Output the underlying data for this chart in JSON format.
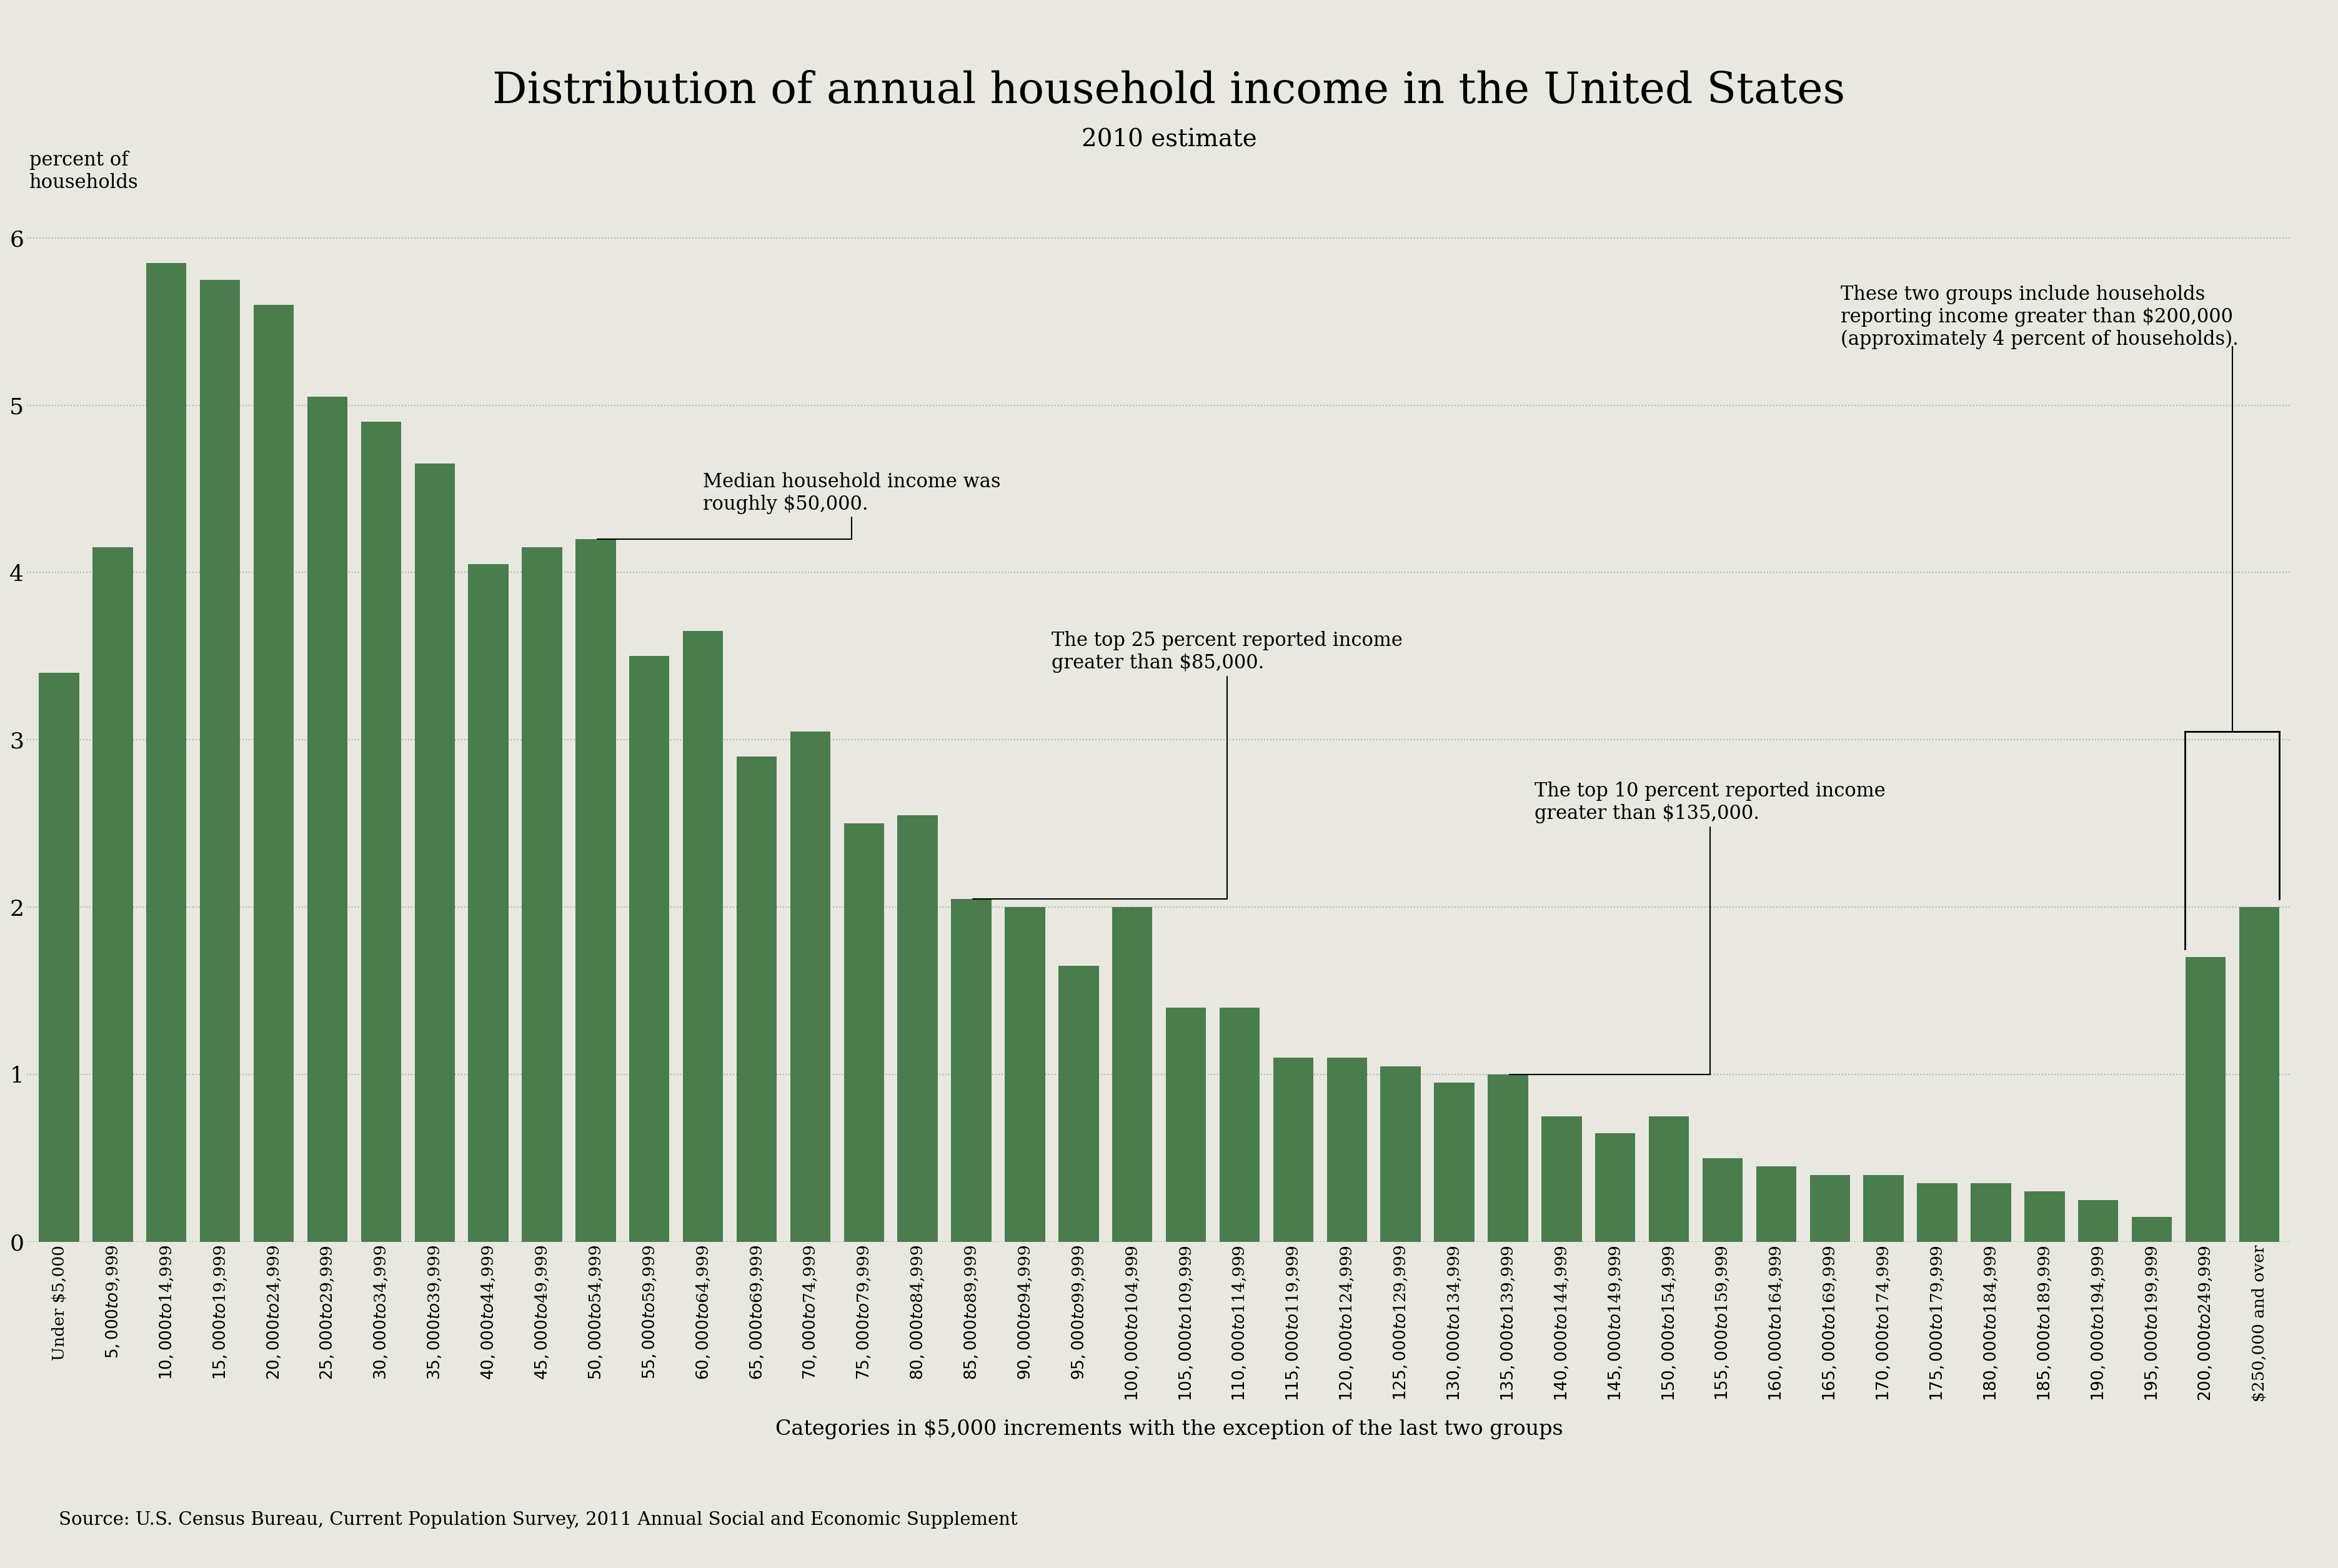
{
  "title": "Distribution of annual household income in the United States",
  "subtitle": "2010 estimate",
  "ylabel": "percent of\nhouseholds",
  "xlabel": "Categories in $5,000 increments with the exception of the last two groups",
  "source": "Source: U.S. Census Bureau, Current Population Survey, 2011 Annual Social and Economic Supplement",
  "bar_color": "#4a7c4e",
  "background_color": "#e8e8e0",
  "categories": [
    "Under $5,000",
    "$5,000 to $9,999",
    "$10,000 to $14,999",
    "$15,000 to $19,999",
    "$20,000 to $24,999",
    "$25,000 to $29,999",
    "$30,000 to $34,999",
    "$35,000 to $39,999",
    "$40,000 to $44,999",
    "$45,000 to $49,999",
    "$50,000 to $54,999",
    "$55,000 to $59,999",
    "$60,000 to $64,999",
    "$65,000 to $69,999",
    "$70,000 to $74,999",
    "$75,000 to $79,999",
    "$80,000 to $84,999",
    "$85,000 to $89,999",
    "$90,000 to $94,999",
    "$95,000 to $99,999",
    "$100,000 to $104,999",
    "$105,000 to $109,999",
    "$110,000 to $114,999",
    "$115,000 to $119,999",
    "$120,000 to $124,999",
    "$125,000 to $129,999",
    "$130,000 to $134,999",
    "$135,000 to $139,999",
    "$140,000 to $144,999",
    "$145,000 to $149,999",
    "$150,000 to $154,999",
    "$155,000 to $159,999",
    "$160,000 to $164,999",
    "$165,000 to $169,999",
    "$170,000 to $174,999",
    "$175,000 to $179,999",
    "$180,000 to $184,999",
    "$185,000 to $189,999",
    "$190,000 to $194,999",
    "$195,000 to $199,999",
    "$200,000 to $249,999",
    "$250,000 and over"
  ],
  "values": [
    3.4,
    4.15,
    5.85,
    5.75,
    5.6,
    5.05,
    4.9,
    4.65,
    4.05,
    4.15,
    4.2,
    3.5,
    3.65,
    2.9,
    3.05,
    2.5,
    2.55,
    2.05,
    2.0,
    1.65,
    2.0,
    1.4,
    1.4,
    1.1,
    1.1,
    1.05,
    0.95,
    1.0,
    0.75,
    0.65,
    0.75,
    0.5,
    0.45,
    0.4,
    0.4,
    0.35,
    0.35,
    0.3,
    0.25,
    0.15,
    1.7,
    2.0
  ],
  "ylim": [
    0,
    6.5
  ],
  "yticks": [
    0,
    1,
    2,
    3,
    4,
    5,
    6
  ],
  "annotation1_text": "Median household income was\nroughly $50,000.",
  "annotation2_text": "The top 25 percent reported income\ngreater than $85,000.",
  "annotation3_text": "The top 10 percent reported income\ngreater than $135,000.",
  "annotation4_text": "These two groups include households\nreporting income greater than $200,000\n(approximately 4 percent of households)."
}
